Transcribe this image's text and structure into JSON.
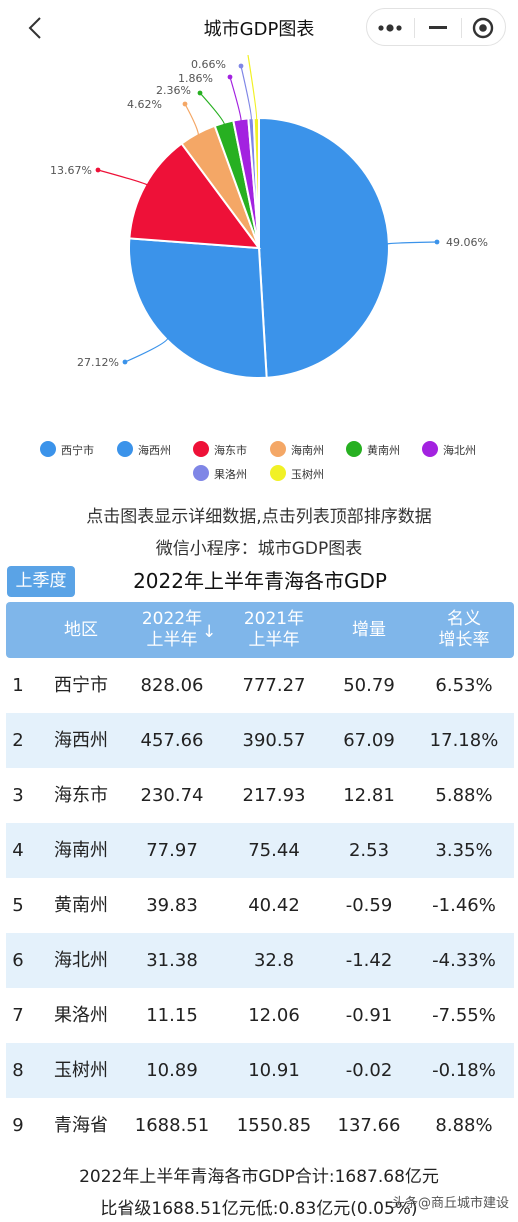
{
  "header": {
    "title": "城市GDP图表"
  },
  "colors": {
    "accent": "#5aa3e6",
    "table_header": "#7fb6ea",
    "row_alt": "#e4f1fb"
  },
  "chart_data": {
    "type": "pie",
    "title": "",
    "slices": [
      {
        "name": "西宁市",
        "value": 49.06,
        "label": "49.06%",
        "color": "#3b93ea"
      },
      {
        "name": "海西州",
        "value": 27.12,
        "label": "27.12%",
        "color": "#3b93ea"
      },
      {
        "name": "海东市",
        "value": 13.67,
        "label": "13.67%",
        "color": "#ee1138"
      },
      {
        "name": "海南州",
        "value": 4.62,
        "label": "4.62%",
        "color": "#f4a766"
      },
      {
        "name": "黄南州",
        "value": 2.36,
        "label": "2.36%",
        "color": "#27b021"
      },
      {
        "name": "海北州",
        "value": 1.86,
        "label": "1.86%",
        "color": "#a322e0"
      },
      {
        "name": "果洛州",
        "value": 0.66,
        "label": "0.66%",
        "color": "#7f86e6"
      },
      {
        "name": "玉树州",
        "value": 0.65,
        "label": "",
        "color": "#f1f126"
      }
    ],
    "legend_position": "bottom"
  },
  "hints": {
    "line1": "点击图表显示详细数据,点击列表顶部排序数据",
    "line2": "微信小程序：城市GDP图表"
  },
  "table": {
    "season_button": "上季度",
    "title": "2022年上半年青海各市GDP",
    "headers": [
      {
        "l1": "地区",
        "l2": ""
      },
      {
        "l1": "2022年",
        "l2": "上半年"
      },
      {
        "l1": "2021年",
        "l2": "上半年"
      },
      {
        "l1": "增量",
        "l2": ""
      },
      {
        "l1": "名义",
        "l2": "增长率"
      }
    ],
    "sort_arrow": "↓",
    "rows": [
      [
        "1",
        "西宁市",
        "828.06",
        "777.27",
        "50.79",
        "6.53%"
      ],
      [
        "2",
        "海西州",
        "457.66",
        "390.57",
        "67.09",
        "17.18%"
      ],
      [
        "3",
        "海东市",
        "230.74",
        "217.93",
        "12.81",
        "5.88%"
      ],
      [
        "4",
        "海南州",
        "77.97",
        "75.44",
        "2.53",
        "3.35%"
      ],
      [
        "5",
        "黄南州",
        "39.83",
        "40.42",
        "-0.59",
        "-1.46%"
      ],
      [
        "6",
        "海北州",
        "31.38",
        "32.8",
        "-1.42",
        "-4.33%"
      ],
      [
        "7",
        "果洛州",
        "11.15",
        "12.06",
        "-0.91",
        "-7.55%"
      ],
      [
        "8",
        "玉树州",
        "10.89",
        "10.91",
        "-0.02",
        "-0.18%"
      ],
      [
        "9",
        "青海省",
        "1688.51",
        "1550.85",
        "137.66",
        "8.88%"
      ]
    ]
  },
  "footer": {
    "line1": "2022年上半年青海各市GDP合计:1687.68亿元",
    "line2": "比省级1688.51亿元低:0.83亿元(0.05%)"
  },
  "watermark": "头条@商丘城市建设"
}
